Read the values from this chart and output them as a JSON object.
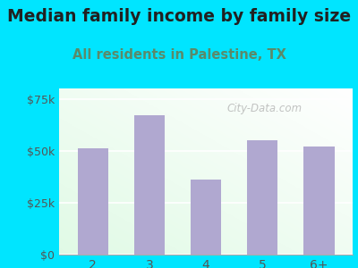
{
  "title": "Median family income by family size",
  "subtitle": "All residents in Palestine, TX",
  "categories": [
    "2",
    "3",
    "4",
    "5",
    "6+"
  ],
  "values": [
    51000,
    67000,
    36000,
    55000,
    52000
  ],
  "bar_color": "#b0a8d0",
  "background_color": "#00e5ff",
  "title_color": "#212121",
  "subtitle_color": "#5a8a6a",
  "tick_color": "#555555",
  "ytick_labels": [
    "$0",
    "$25k",
    "$50k",
    "$75k"
  ],
  "ytick_values": [
    0,
    25000,
    50000,
    75000
  ],
  "ylim": [
    0,
    80000
  ],
  "title_fontsize": 13.5,
  "subtitle_fontsize": 10.5,
  "watermark_text": "City-Data.com"
}
